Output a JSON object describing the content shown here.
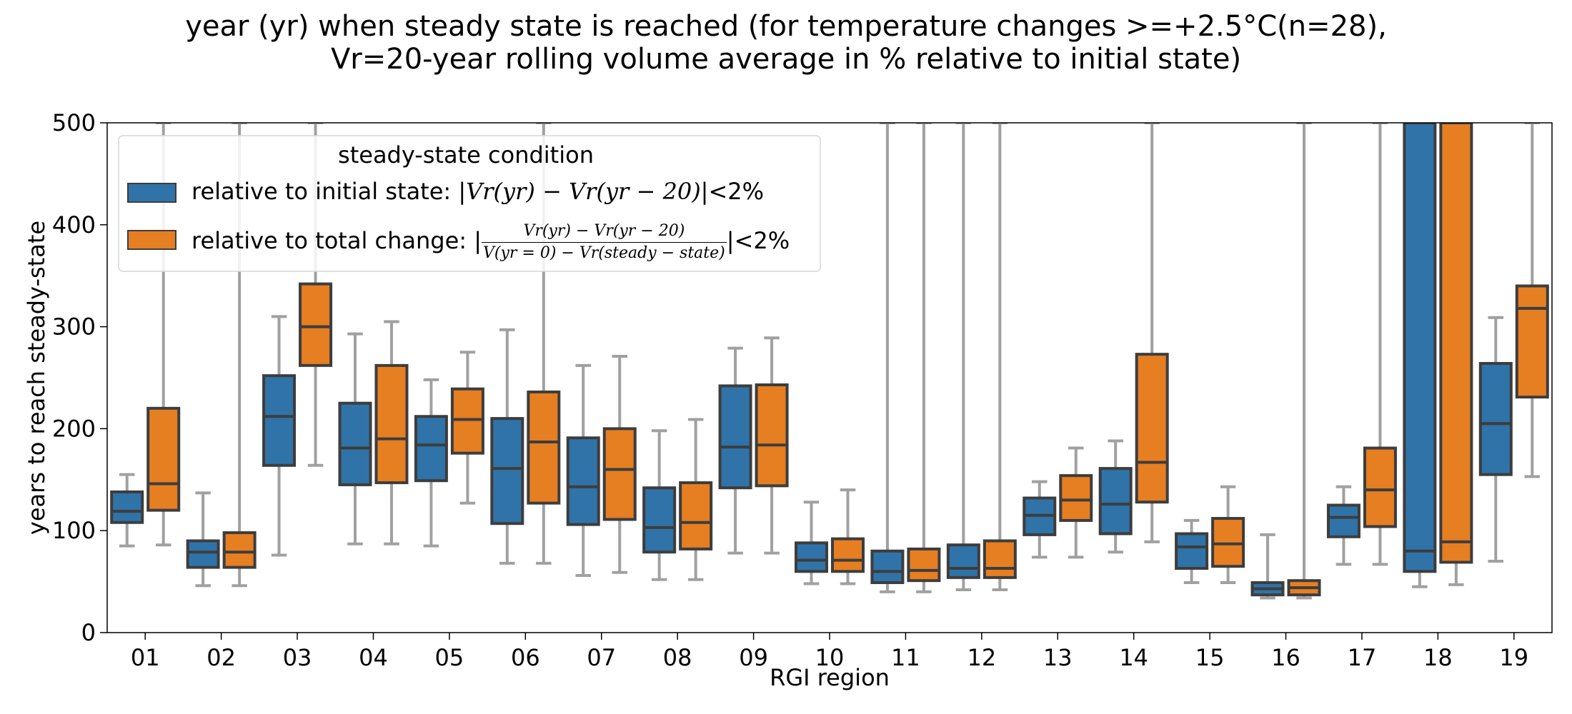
{
  "title_line1": "year (yr) when steady state is reached (for temperature changes >=+2.5°C(n=28),",
  "title_line2": "Vr=20-year rolling volume average in % relative to initial state)",
  "colors": {
    "s1": "#2f73a8",
    "s2": "#e67e22",
    "edge": "#3d3d3d",
    "whisker": "#a0a0a0"
  },
  "legend": {
    "title": "steady-state condition",
    "entry1_text": "relative to initial state: |",
    "entry1_math": "Vr(yr) − Vr(yr − 20)",
    "entry1_tail": "|<2%",
    "entry2_text": "relative to total change: |",
    "entry2_num": "Vr(yr) − Vr(yr − 20)",
    "entry2_den": "V(yr = 0) − Vr(steady − state)",
    "entry2_tail": "|<2%"
  },
  "chart_data": {
    "type": "box",
    "title": "year (yr) when steady state is reached (for temperature changes >=+2.5°C(n=28), Vr=20-year rolling volume average in % relative to initial state)",
    "xlabel": "RGI region",
    "ylabel": "years to reach steady-state",
    "ylim": [
      0,
      500
    ],
    "yticks": [
      0,
      100,
      200,
      300,
      400,
      500
    ],
    "categories": [
      "01",
      "02",
      "03",
      "04",
      "05",
      "06",
      "07",
      "08",
      "09",
      "10",
      "11",
      "12",
      "13",
      "14",
      "15",
      "16",
      "17",
      "18",
      "19"
    ],
    "legend_position": "top-left",
    "grid": false,
    "series": [
      {
        "name": "relative to initial state: |Vr(yr) − Vr(yr − 20)|<2%",
        "boxes": [
          {
            "whislo": 85,
            "q1": 108,
            "med": 119,
            "q3": 138,
            "whishi": 155
          },
          {
            "whislo": 46,
            "q1": 64,
            "med": 79,
            "q3": 90,
            "whishi": 137
          },
          {
            "whislo": 76,
            "q1": 164,
            "med": 212,
            "q3": 252,
            "whishi": 310
          },
          {
            "whislo": 87,
            "q1": 145,
            "med": 181,
            "q3": 225,
            "whishi": 293
          },
          {
            "whislo": 85,
            "q1": 149,
            "med": 184,
            "q3": 212,
            "whishi": 248
          },
          {
            "whislo": 68,
            "q1": 107,
            "med": 161,
            "q3": 210,
            "whishi": 297
          },
          {
            "whislo": 56,
            "q1": 106,
            "med": 143,
            "q3": 191,
            "whishi": 262
          },
          {
            "whislo": 52,
            "q1": 79,
            "med": 103,
            "q3": 142,
            "whishi": 198
          },
          {
            "whislo": 78,
            "q1": 142,
            "med": 182,
            "q3": 242,
            "whishi": 279
          },
          {
            "whislo": 48,
            "q1": 60,
            "med": 71,
            "q3": 88,
            "whishi": 128
          },
          {
            "whislo": 40,
            "q1": 49,
            "med": 60,
            "q3": 80,
            "whishi": 500
          },
          {
            "whislo": 42,
            "q1": 54,
            "med": 63,
            "q3": 86,
            "whishi": 500
          },
          {
            "whislo": 74,
            "q1": 96,
            "med": 115,
            "q3": 132,
            "whishi": 148
          },
          {
            "whislo": 79,
            "q1": 97,
            "med": 126,
            "q3": 161,
            "whishi": 188
          },
          {
            "whislo": 49,
            "q1": 63,
            "med": 84,
            "q3": 97,
            "whishi": 110
          },
          {
            "whislo": 34,
            "q1": 37,
            "med": 43,
            "q3": 49,
            "whishi": 96
          },
          {
            "whislo": 67,
            "q1": 94,
            "med": 113,
            "q3": 125,
            "whishi": 143
          },
          {
            "whislo": 45,
            "q1": 60,
            "med": 80,
            "q3": 500,
            "whishi": 500
          },
          {
            "whislo": 70,
            "q1": 155,
            "med": 205,
            "q3": 264,
            "whishi": 309
          }
        ]
      },
      {
        "name": "relative to total change: |(Vr(yr) − Vr(yr − 20))/(V(yr = 0) − Vr(steady − state))|<2%",
        "boxes": [
          {
            "whislo": 86,
            "q1": 120,
            "med": 146,
            "q3": 220,
            "whishi": 500
          },
          {
            "whislo": 46,
            "q1": 64,
            "med": 79,
            "q3": 98,
            "whishi": 500
          },
          {
            "whislo": 164,
            "q1": 262,
            "med": 300,
            "q3": 342,
            "whishi": 500
          },
          {
            "whislo": 87,
            "q1": 147,
            "med": 190,
            "q3": 262,
            "whishi": 305
          },
          {
            "whislo": 127,
            "q1": 176,
            "med": 209,
            "q3": 239,
            "whishi": 275
          },
          {
            "whislo": 68,
            "q1": 127,
            "med": 187,
            "q3": 236,
            "whishi": 500
          },
          {
            "whislo": 59,
            "q1": 111,
            "med": 160,
            "q3": 200,
            "whishi": 271
          },
          {
            "whislo": 52,
            "q1": 82,
            "med": 108,
            "q3": 147,
            "whishi": 209
          },
          {
            "whislo": 78,
            "q1": 144,
            "med": 184,
            "q3": 243,
            "whishi": 289
          },
          {
            "whislo": 48,
            "q1": 60,
            "med": 71,
            "q3": 92,
            "whishi": 140
          },
          {
            "whislo": 40,
            "q1": 51,
            "med": 61,
            "q3": 82,
            "whishi": 500
          },
          {
            "whislo": 42,
            "q1": 54,
            "med": 63,
            "q3": 90,
            "whishi": 500
          },
          {
            "whislo": 74,
            "q1": 110,
            "med": 130,
            "q3": 154,
            "whishi": 181
          },
          {
            "whislo": 89,
            "q1": 128,
            "med": 167,
            "q3": 273,
            "whishi": 500
          },
          {
            "whislo": 49,
            "q1": 65,
            "med": 87,
            "q3": 112,
            "whishi": 143
          },
          {
            "whislo": 34,
            "q1": 37,
            "med": 44,
            "q3": 51,
            "whishi": 500
          },
          {
            "whislo": 67,
            "q1": 104,
            "med": 140,
            "q3": 181,
            "whishi": 500
          },
          {
            "whislo": 47,
            "q1": 69,
            "med": 89,
            "q3": 500,
            "whishi": 500
          },
          {
            "whislo": 153,
            "q1": 231,
            "med": 318,
            "q3": 340,
            "whishi": 500
          }
        ]
      }
    ]
  }
}
